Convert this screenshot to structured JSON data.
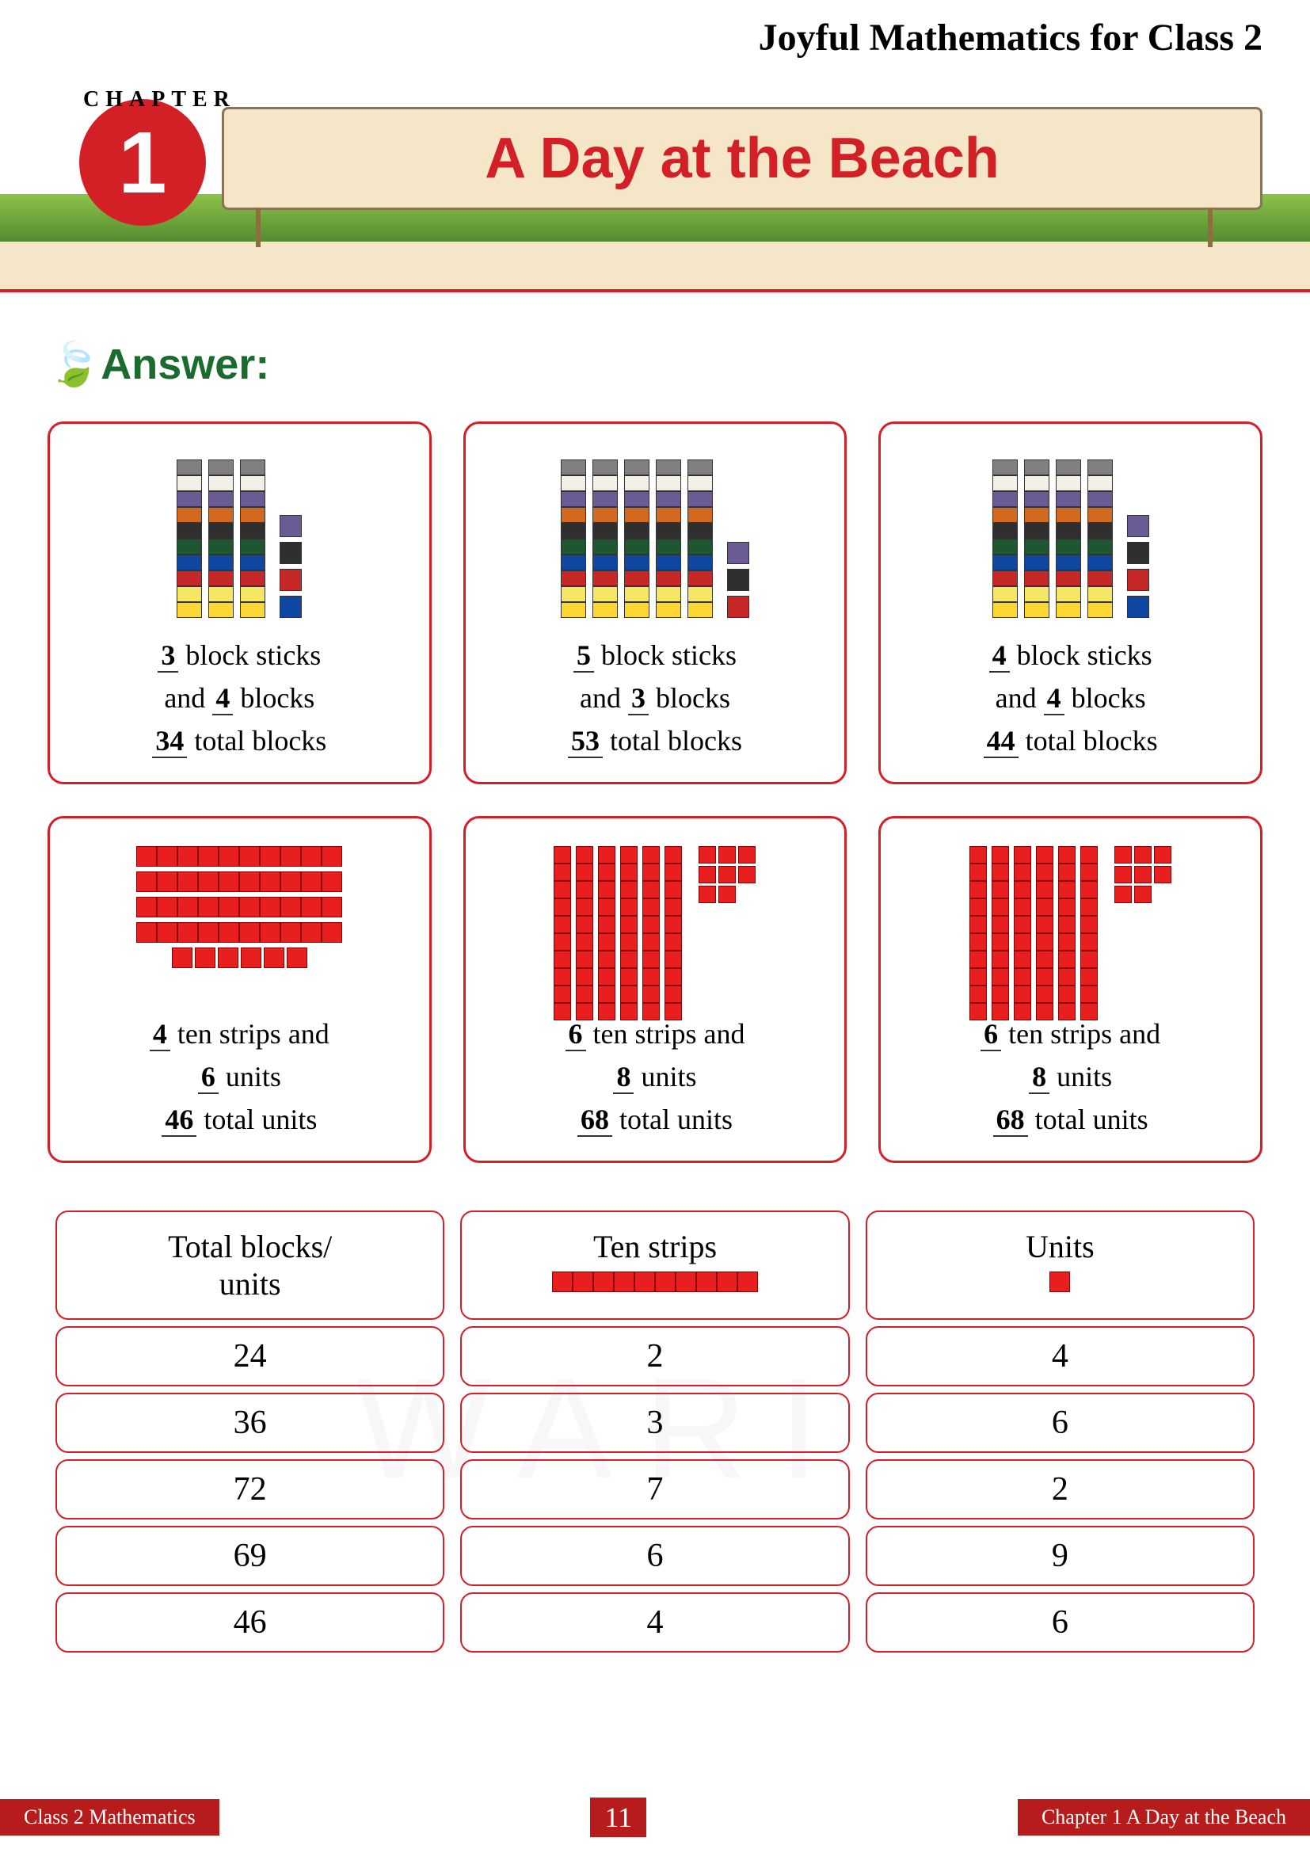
{
  "header": {
    "book_title": "Joyful Mathematics for Class  2",
    "chapter_label": "CHAPTER",
    "chapter_number": "1",
    "chapter_title": "A Day at the Beach"
  },
  "answer_label": "Answer:",
  "stick_colors": [
    "#808080",
    "#f5f0e6",
    "#6b5b95",
    "#d2691e",
    "#2f2f2f",
    "#1e5631",
    "#0d47a1",
    "#c62828",
    "#f5e663",
    "#fdd835"
  ],
  "loose_colors": [
    "#6b5b95",
    "#2f2f2f",
    "#c62828",
    "#0d47a1",
    "#fdd835",
    "#1e5631",
    "#d2691e",
    "#808080"
  ],
  "cards": [
    {
      "sticks": 3,
      "blocks": 4,
      "total": 34,
      "label1": "block sticks",
      "label2": "and",
      "label3": "blocks",
      "label4": "total blocks"
    },
    {
      "sticks": 5,
      "blocks": 3,
      "total": 53,
      "label1": "block sticks",
      "label2": "and",
      "label3": "blocks",
      "label4": "total blocks"
    },
    {
      "sticks": 4,
      "blocks": 4,
      "total": 44,
      "label1": "block sticks",
      "label2": "and",
      "label3": "blocks",
      "label4": "total blocks"
    },
    {
      "strips": 4,
      "units": 6,
      "total": 46,
      "label1": "ten strips and",
      "label2": "units",
      "label3": "total units",
      "layout": "h"
    },
    {
      "strips": 6,
      "units": 8,
      "total": 68,
      "label1": "ten strips and",
      "label2": "units",
      "label3": "total units",
      "layout": "v"
    },
    {
      "strips": 6,
      "units": 8,
      "total": 68,
      "label1": "ten strips and",
      "label2": "units",
      "label3": "total units",
      "layout": "v"
    }
  ],
  "table": {
    "headers": [
      "Total blocks/ units",
      "Ten strips",
      "Units"
    ],
    "rows": [
      [
        24,
        2,
        4
      ],
      [
        36,
        3,
        6
      ],
      [
        72,
        7,
        2
      ],
      [
        69,
        6,
        9
      ],
      [
        46,
        4,
        6
      ]
    ]
  },
  "footer": {
    "left": "Class 2 Mathematics",
    "page": "11",
    "right": "Chapter 1 A Day at the Beach"
  },
  "watermark": "WARI"
}
